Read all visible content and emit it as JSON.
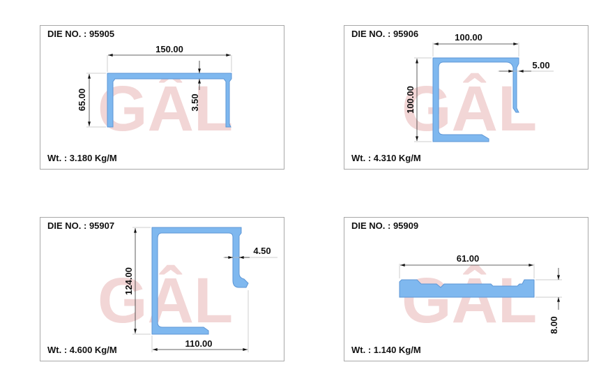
{
  "watermark": "GÂL",
  "colors": {
    "profile": "#7fb8ef",
    "watermark": "#f2d6d6",
    "border": "#a8a8a8"
  },
  "profiles": [
    {
      "die_label": "DIE NO. : 95905",
      "weight": "Wt. : 3.180 Kg/M",
      "dims": [
        "150.00",
        "65.00",
        "3.50"
      ]
    },
    {
      "die_label": "DIE NO. : 95906",
      "weight": "Wt. :  4.310 Kg/M",
      "dims": [
        "100.00",
        "100.00",
        "5.00"
      ]
    },
    {
      "die_label": "DIE NO. : 95907",
      "weight": "Wt. : 4.600 Kg/M",
      "dims": [
        "124.00",
        "4.50",
        "110.00"
      ]
    },
    {
      "die_label": "DIE NO. : 95909",
      "weight": "Wt. : 1.140 Kg/M",
      "dims": [
        "61.00",
        "8.00"
      ]
    }
  ]
}
